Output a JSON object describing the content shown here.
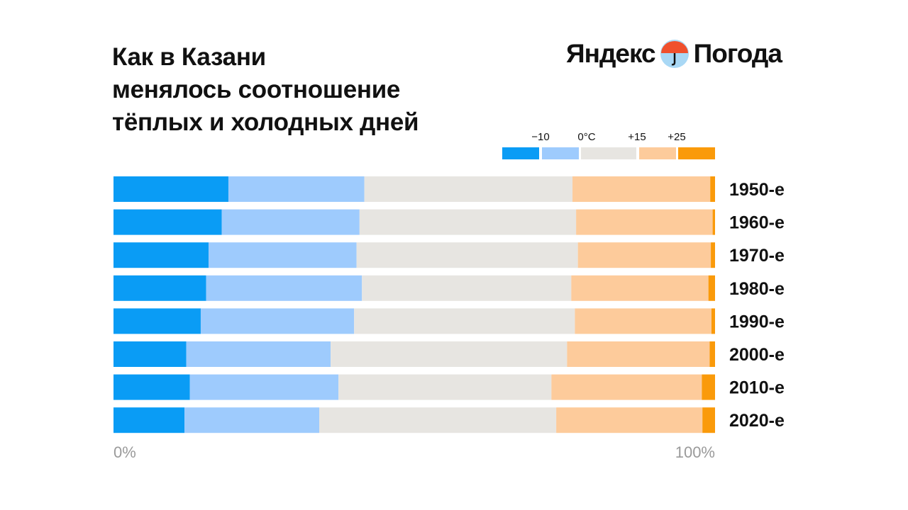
{
  "title_lines": [
    "Как в Казани",
    "менялось соотношение",
    "тёплых и холодных дней"
  ],
  "logo": {
    "left": "Яндекс",
    "right": "Погода",
    "icon": "umbrella-icon"
  },
  "chart_data": {
    "type": "bar",
    "orientation": "horizontal",
    "stacked": true,
    "normalized": true,
    "categories": [
      "1950-е",
      "1960-е",
      "1970-е",
      "1980-е",
      "1990-е",
      "2000-е",
      "2010-е",
      "2020-е"
    ],
    "series": [
      {
        "name": "ниже −10",
        "color": "#0A9CF5",
        "values": [
          19.1,
          18.0,
          15.8,
          15.4,
          14.5,
          12.1,
          12.7,
          11.8
        ]
      },
      {
        "name": "−10…0°C",
        "color": "#9ECBFD",
        "values": [
          22.6,
          22.9,
          24.6,
          25.9,
          25.5,
          24.0,
          24.7,
          22.4
        ]
      },
      {
        "name": "0…+15",
        "color": "#E7E5E1",
        "values": [
          34.6,
          36.0,
          36.8,
          34.8,
          36.7,
          39.3,
          35.4,
          39.4
        ]
      },
      {
        "name": "+15…+25",
        "color": "#FDCB9B",
        "values": [
          22.9,
          22.7,
          22.1,
          22.8,
          22.7,
          23.7,
          25.0,
          24.3
        ]
      },
      {
        "name": "выше +25",
        "color": "#FA9A0A",
        "values": [
          0.8,
          0.4,
          0.7,
          1.1,
          0.6,
          0.9,
          2.2,
          2.1
        ]
      }
    ],
    "legend_thresholds": [
      "−10",
      "0°C",
      "+15",
      "+25"
    ],
    "legend_placement": "top-right",
    "xlim": [
      0,
      100
    ],
    "xtick_labels": [
      "0%",
      "100%"
    ],
    "xlabel": "",
    "ylabel": ""
  }
}
